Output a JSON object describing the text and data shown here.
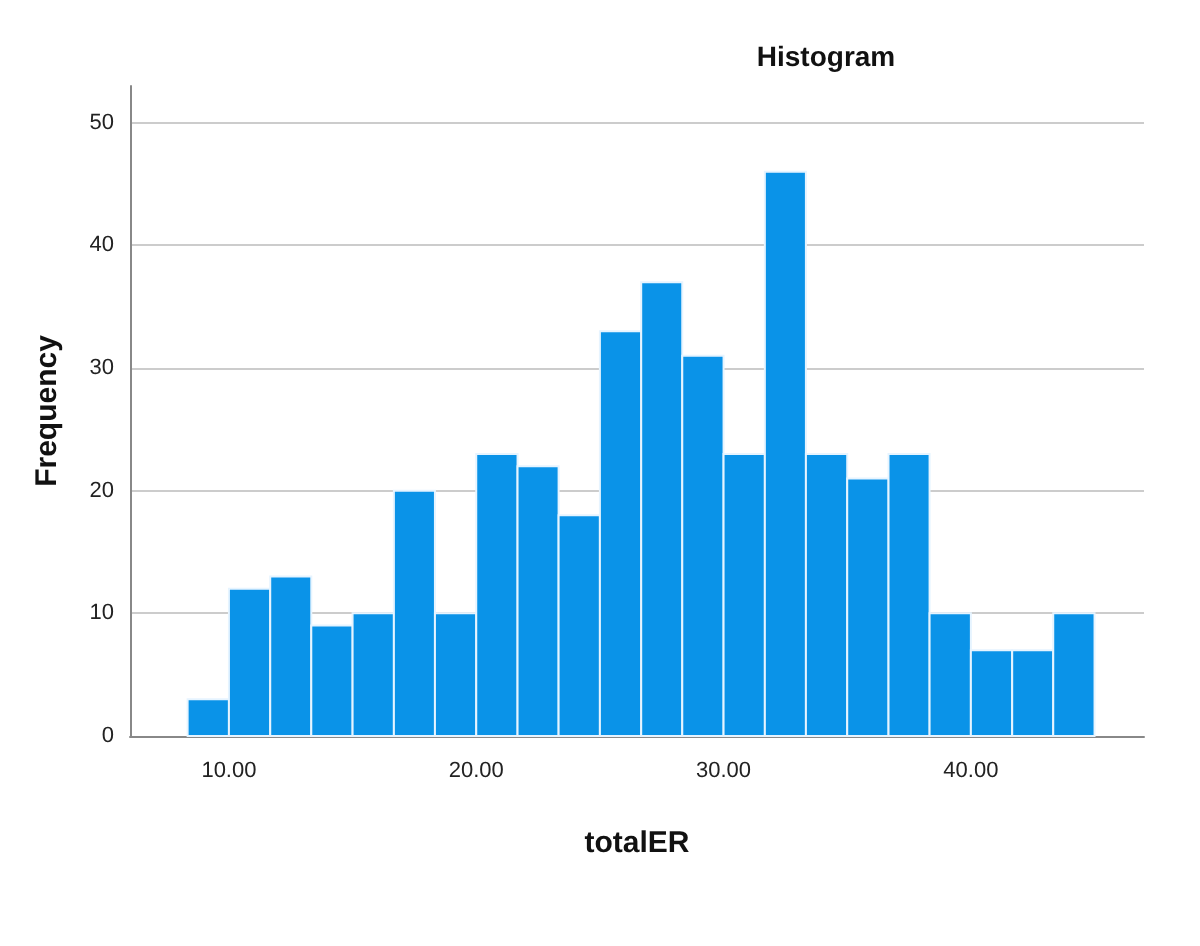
{
  "chart_data": {
    "type": "histogram",
    "title": "Histogram",
    "xlabel": "totalER",
    "ylabel": "Frequency",
    "bins": [
      8.33,
      10,
      11.67,
      13.33,
      15,
      16.67,
      18.33,
      20,
      21.67,
      23.33,
      25,
      26.67,
      28.33,
      30,
      31.67,
      33.33,
      35,
      36.67,
      38.33,
      40,
      41.67,
      43.33,
      45
    ],
    "values": [
      3,
      12,
      13,
      9,
      10,
      20,
      10,
      23,
      22,
      18,
      33,
      37,
      31,
      23,
      46,
      23,
      21,
      23,
      10,
      7,
      7,
      10
    ],
    "color": "#0a93e8",
    "xlim": [
      6,
      47
    ],
    "xticks": [
      {
        "value": 10,
        "label": "10.00"
      },
      {
        "value": 20,
        "label": "20.00"
      },
      {
        "value": 30,
        "label": "30.00"
      },
      {
        "value": 40,
        "label": "40.00"
      }
    ],
    "ylim": [
      0,
      53
    ],
    "yticks": [
      0,
      10,
      20,
      30,
      40,
      50
    ],
    "grid": "y"
  }
}
